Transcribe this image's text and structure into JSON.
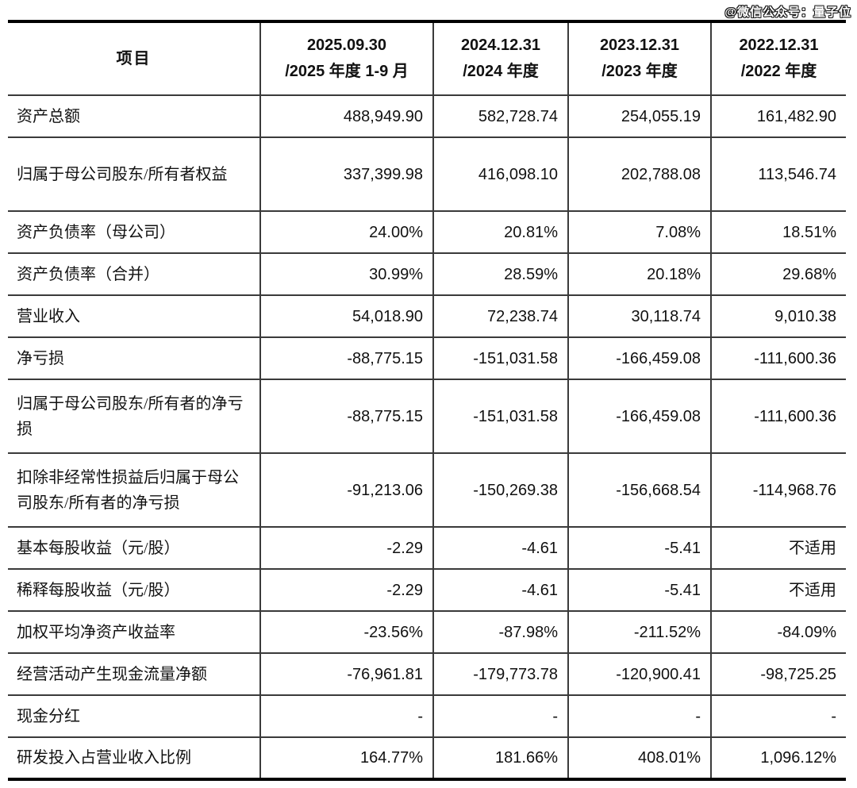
{
  "watermark": "@微信公众号：量子位",
  "colors": {
    "text": "#111111",
    "outer_border": "#000000",
    "inner_border": "#3a3a3a",
    "background": "#ffffff",
    "watermark_fill": "#ffffff",
    "watermark_outline": "#1a1a1a"
  },
  "table": {
    "header": {
      "item_label": "项目",
      "periods": [
        {
          "line1": "2025.09.30",
          "line2": "/2025 年度 1-9 月"
        },
        {
          "line1": "2024.12.31",
          "line2": "/2024 年度"
        },
        {
          "line1": "2023.12.31",
          "line2": "/2023 年度"
        },
        {
          "line1": "2022.12.31",
          "line2": "/2022 年度"
        }
      ]
    },
    "rows": [
      {
        "label": "资产总额",
        "tall": false,
        "values": [
          "488,949.90",
          "582,728.74",
          "254,055.19",
          "161,482.90"
        ]
      },
      {
        "label": "归属于母公司股东/所有者权益",
        "tall": true,
        "values": [
          "337,399.98",
          "416,098.10",
          "202,788.08",
          "113,546.74"
        ]
      },
      {
        "label": "资产负债率（母公司）",
        "tall": false,
        "values": [
          "24.00%",
          "20.81%",
          "7.08%",
          "18.51%"
        ]
      },
      {
        "label": "资产负债率（合并）",
        "tall": false,
        "values": [
          "30.99%",
          "28.59%",
          "20.18%",
          "29.68%"
        ]
      },
      {
        "label": "营业收入",
        "tall": false,
        "values": [
          "54,018.90",
          "72,238.74",
          "30,118.74",
          "9,010.38"
        ]
      },
      {
        "label": "净亏损",
        "tall": false,
        "values": [
          "-88,775.15",
          "-151,031.58",
          "-166,459.08",
          "-111,600.36"
        ]
      },
      {
        "label": "归属于母公司股东/所有者的净亏损",
        "tall": true,
        "values": [
          "-88,775.15",
          "-151,031.58",
          "-166,459.08",
          "-111,600.36"
        ]
      },
      {
        "label": "扣除非经常性损益后归属于母公司股东/所有者的净亏损",
        "tall": true,
        "values": [
          "-91,213.06",
          "-150,269.38",
          "-156,668.54",
          "-114,968.76"
        ]
      },
      {
        "label": "基本每股收益（元/股）",
        "tall": false,
        "values": [
          "-2.29",
          "-4.61",
          "-5.41",
          "不适用"
        ]
      },
      {
        "label": "稀释每股收益（元/股）",
        "tall": false,
        "values": [
          "-2.29",
          "-4.61",
          "-5.41",
          "不适用"
        ]
      },
      {
        "label": "加权平均净资产收益率",
        "tall": false,
        "values": [
          "-23.56%",
          "-87.98%",
          "-211.52%",
          "-84.09%"
        ]
      },
      {
        "label": "经营活动产生现金流量净额",
        "tall": false,
        "values": [
          "-76,961.81",
          "-179,773.78",
          "-120,900.41",
          "-98,725.25"
        ]
      },
      {
        "label": "现金分红",
        "tall": false,
        "values": [
          "-",
          "-",
          "-",
          "-"
        ]
      },
      {
        "label": "研发投入占营业收入比例",
        "tall": false,
        "values": [
          "164.77%",
          "181.66%",
          "408.01%",
          "1,096.12%"
        ]
      }
    ]
  }
}
